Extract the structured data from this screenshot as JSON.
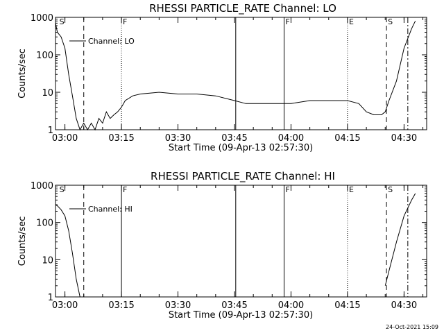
{
  "footer": {
    "timestamp": "24-Oct-2021 15:09"
  },
  "chart_data": [
    {
      "type": "line",
      "title": "RHESSI PARTICLE_RATE Channel: LO",
      "xlabel": "Start Time (09-Apr-13 02:57:30)",
      "ylabel": "Counts/sec",
      "xlim": [
        "02:57:30",
        "04:36:00"
      ],
      "ylim": [
        1,
        1000
      ],
      "yscale": "log",
      "grid": false,
      "legend": {
        "position": "top-left",
        "label": "Channel: LO"
      },
      "x_ticks": [
        "03:00",
        "03:15",
        "03:30",
        "03:45",
        "04:00",
        "04:15",
        "04:30"
      ],
      "y_ticks": [
        "1",
        "10",
        "100",
        "1000"
      ],
      "markers": [
        {
          "time": "02:58:10",
          "style": "none",
          "label": "S"
        },
        {
          "time": "03:05:00",
          "style": "dashed",
          "label": ""
        },
        {
          "time": "03:15:00",
          "style": "dotted",
          "label": "F"
        },
        {
          "time": "03:45:20",
          "style": "solid",
          "label": ""
        },
        {
          "time": "03:58:10",
          "style": "solid",
          "label": "F"
        },
        {
          "time": "04:15:00",
          "style": "dotted",
          "label": "E"
        },
        {
          "time": "04:25:20",
          "style": "dashed",
          "label": "S"
        },
        {
          "time": "04:31:00",
          "style": "dashdot",
          "label": ""
        }
      ],
      "series": [
        {
          "name": "Channel: LO",
          "x": [
            "02:57:30",
            "02:58:00",
            "02:59:00",
            "03:00:00",
            "03:01:00",
            "03:02:00",
            "03:03:00",
            "03:04:00",
            "03:05:00",
            "03:06:00",
            "03:07:00",
            "03:08:00",
            "03:09:00",
            "03:10:00",
            "03:11:00",
            "03:12:00",
            "03:13:00",
            "03:14:00",
            "03:15:00",
            "03:16:00",
            "03:18:00",
            "03:20:00",
            "03:25:00",
            "03:30:00",
            "03:35:00",
            "03:40:00",
            "03:45:00",
            "03:48:00",
            "03:50:00",
            "03:55:00",
            "04:00:00",
            "04:05:00",
            "04:10:00",
            "04:15:00",
            "04:18:00",
            "04:20:00",
            "04:22:00",
            "04:24:00",
            "04:25:00",
            "04:26:00",
            "04:28:00",
            "04:30:00",
            "04:32:00",
            "04:33:00"
          ],
          "y": [
            700,
            400,
            300,
            150,
            30,
            8,
            2,
            1,
            1.5,
            1,
            1.5,
            1,
            2,
            1.5,
            3,
            2,
            2.5,
            3,
            4,
            6,
            8,
            9,
            10,
            9,
            9,
            8,
            6,
            5,
            5,
            5,
            5,
            6,
            6,
            6,
            5,
            3,
            2.5,
            2.5,
            3,
            6,
            20,
            150,
            500,
            800
          ]
        }
      ]
    },
    {
      "type": "line",
      "title": "RHESSI PARTICLE_RATE Channel: HI",
      "xlabel": "Start Time (09-Apr-13 02:57:30)",
      "ylabel": "Counts/sec",
      "xlim": [
        "02:57:30",
        "04:36:00"
      ],
      "ylim": [
        1,
        1000
      ],
      "yscale": "log",
      "grid": false,
      "legend": {
        "position": "top-left",
        "label": "Channel: HI"
      },
      "x_ticks": [
        "03:00",
        "03:15",
        "03:30",
        "03:45",
        "04:00",
        "04:15",
        "04:30"
      ],
      "y_ticks": [
        "1",
        "10",
        "100",
        "1000"
      ],
      "markers": [
        {
          "time": "02:58:10",
          "style": "none",
          "label": "S"
        },
        {
          "time": "03:05:00",
          "style": "dashed",
          "label": ""
        },
        {
          "time": "03:15:00",
          "style": "solid",
          "label": "F"
        },
        {
          "time": "03:45:20",
          "style": "solid",
          "label": ""
        },
        {
          "time": "03:58:10",
          "style": "solid",
          "label": "F"
        },
        {
          "time": "04:15:00",
          "style": "dotted",
          "label": "E"
        },
        {
          "time": "04:25:20",
          "style": "dashed",
          "label": "S"
        },
        {
          "time": "04:31:00",
          "style": "dashdot",
          "label": ""
        }
      ],
      "series": [
        {
          "name": "Channel: HI",
          "x": [
            "02:57:30",
            "02:58:00",
            "02:59:00",
            "03:00:00",
            "03:01:00",
            "03:02:00",
            "03:03:00",
            "03:04:00",
            "03:24:00",
            "04:24:00",
            "04:25:00",
            "04:26:00",
            "04:28:00",
            "04:30:00",
            "04:32:00",
            "04:33:00"
          ],
          "y": [
            300,
            280,
            220,
            150,
            60,
            15,
            3,
            1,
            null,
            null,
            2,
            5,
            30,
            150,
            400,
            600
          ]
        }
      ]
    }
  ]
}
